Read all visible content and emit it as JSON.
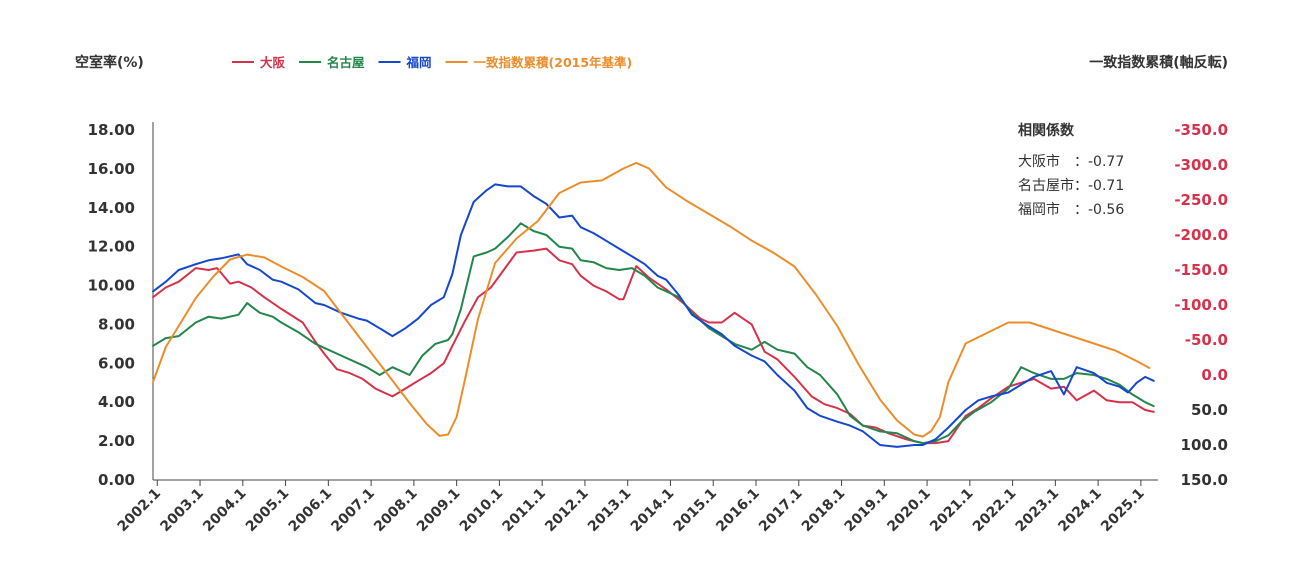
{
  "chart_data": {
    "type": "line",
    "left_axis_label": "空室率(%)",
    "right_axis_label": "一致指数累積(軸反転)",
    "left_ylim": [
      0,
      18
    ],
    "left_ticks": [
      "0.00",
      "2.00",
      "4.00",
      "6.00",
      "8.00",
      "10.00",
      "12.00",
      "14.00",
      "16.00",
      "18.00"
    ],
    "right_ylim": [
      150,
      -350
    ],
    "right_ticks": [
      "150.0",
      "100.0",
      "50.0",
      "0.0",
      "-50.0",
      "-100.0",
      "-150.0",
      "-200.0",
      "-250.0",
      "-300.0",
      "-350.0"
    ],
    "x_ticks": [
      "2002.1",
      "2003.1",
      "2004.1",
      "2005.1",
      "2006.1",
      "2007.1",
      "2008.1",
      "2009.1",
      "2010.1",
      "2011.1",
      "2012.1",
      "2013.1",
      "2014.1",
      "2015.1",
      "2016.1",
      "2017.1",
      "2018.1",
      "2019.1",
      "2020.1",
      "2021.1",
      "2022.1",
      "2023.1",
      "2024.1",
      "2025.1"
    ],
    "x_range": [
      2002.0,
      2025.5
    ],
    "grid": false,
    "legend_position": "top",
    "series": [
      {
        "name": "大阪",
        "axis": "left",
        "color": "#d6324b",
        "x": [
          2002.0,
          2002.3,
          2002.6,
          2003.0,
          2003.3,
          2003.5,
          2003.8,
          2004.0,
          2004.3,
          2004.6,
          2005.0,
          2005.5,
          2005.8,
          2006.0,
          2006.3,
          2006.6,
          2006.9,
          2007.2,
          2007.4,
          2007.6,
          2007.9,
          2008.2,
          2008.5,
          2008.8,
          2009.0,
          2009.3,
          2009.6,
          2009.9,
          2010.2,
          2010.5,
          2010.9,
          2011.2,
          2011.5,
          2011.8,
          2012.0,
          2012.3,
          2012.6,
          2012.9,
          2013.0,
          2013.3,
          2013.6,
          2014.0,
          2014.4,
          2014.8,
          2015.0,
          2015.3,
          2015.6,
          2016.0,
          2016.3,
          2016.6,
          2017.0,
          2017.4,
          2017.7,
          2018.0,
          2018.3,
          2018.6,
          2018.9,
          2019.2,
          2019.6,
          2020.0,
          2020.3,
          2020.6,
          2021.0,
          2021.3,
          2021.6,
          2022.0,
          2022.3,
          2022.6,
          2023.0,
          2023.3,
          2023.6,
          2024.0,
          2024.3,
          2024.6,
          2024.9,
          2025.2,
          2025.4
        ],
        "y": [
          9.4,
          9.9,
          10.2,
          10.9,
          10.8,
          10.9,
          10.1,
          10.2,
          9.9,
          9.4,
          8.8,
          8.1,
          7.1,
          6.5,
          5.7,
          5.5,
          5.2,
          4.7,
          4.5,
          4.3,
          4.7,
          5.1,
          5.5,
          6.0,
          6.9,
          8.2,
          9.4,
          9.9,
          10.8,
          11.7,
          11.8,
          11.9,
          11.3,
          11.1,
          10.5,
          10.0,
          9.7,
          9.3,
          9.3,
          11.0,
          10.4,
          9.8,
          9.1,
          8.3,
          8.1,
          8.1,
          8.6,
          8.0,
          6.6,
          6.2,
          5.3,
          4.3,
          3.9,
          3.7,
          3.4,
          2.8,
          2.7,
          2.4,
          2.1,
          1.9,
          1.9,
          2.0,
          3.3,
          3.7,
          4.2,
          4.8,
          5.0,
          5.2,
          4.7,
          4.8,
          4.1,
          4.6,
          4.1,
          4.0,
          4.0,
          3.6,
          3.5
        ]
      },
      {
        "name": "名古屋",
        "axis": "left",
        "color": "#23864a",
        "x": [
          2002.0,
          2002.3,
          2002.6,
          2003.0,
          2003.3,
          2003.6,
          2004.0,
          2004.2,
          2004.5,
          2004.8,
          2005.0,
          2005.4,
          2005.8,
          2006.0,
          2006.4,
          2006.8,
          2007.0,
          2007.3,
          2007.6,
          2008.0,
          2008.3,
          2008.6,
          2008.9,
          2009.0,
          2009.2,
          2009.5,
          2009.8,
          2010.0,
          2010.3,
          2010.6,
          2010.9,
          2011.2,
          2011.5,
          2011.8,
          2012.0,
          2012.3,
          2012.6,
          2012.9,
          2013.2,
          2013.5,
          2013.8,
          2014.0,
          2014.3,
          2014.6,
          2015.0,
          2015.3,
          2015.6,
          2016.0,
          2016.3,
          2016.6,
          2017.0,
          2017.3,
          2017.6,
          2018.0,
          2018.3,
          2018.6,
          2019.0,
          2019.4,
          2019.8,
          2020.0,
          2020.3,
          2020.6,
          2020.9,
          2021.2,
          2021.6,
          2022.0,
          2022.3,
          2022.6,
          2023.0,
          2023.3,
          2023.6,
          2024.0,
          2024.3,
          2024.6,
          2024.9,
          2025.2,
          2025.4
        ],
        "y": [
          6.9,
          7.3,
          7.4,
          8.1,
          8.4,
          8.3,
          8.5,
          9.1,
          8.6,
          8.4,
          8.1,
          7.6,
          7.0,
          6.8,
          6.4,
          6.0,
          5.8,
          5.4,
          5.8,
          5.4,
          6.4,
          7.0,
          7.2,
          7.5,
          8.8,
          11.5,
          11.7,
          11.9,
          12.5,
          13.2,
          12.8,
          12.6,
          12.0,
          11.9,
          11.3,
          11.2,
          10.9,
          10.8,
          10.9,
          10.5,
          9.9,
          9.7,
          9.4,
          8.6,
          7.8,
          7.4,
          7.0,
          6.7,
          7.1,
          6.7,
          6.5,
          5.8,
          5.4,
          4.4,
          3.3,
          2.8,
          2.5,
          2.4,
          2.0,
          1.9,
          2.0,
          2.3,
          3.0,
          3.5,
          4.0,
          4.7,
          5.8,
          5.5,
          5.2,
          5.2,
          5.5,
          5.4,
          5.2,
          4.9,
          4.4,
          4.0,
          3.8
        ]
      },
      {
        "name": "福岡",
        "axis": "left",
        "color": "#1548cc",
        "x": [
          2002.0,
          2002.3,
          2002.6,
          2003.0,
          2003.3,
          2003.6,
          2004.0,
          2004.2,
          2004.5,
          2004.8,
          2005.0,
          2005.4,
          2005.8,
          2006.0,
          2006.4,
          2006.8,
          2007.0,
          2007.3,
          2007.6,
          2007.9,
          2008.2,
          2008.5,
          2008.8,
          2009.0,
          2009.2,
          2009.5,
          2009.8,
          2010.0,
          2010.3,
          2010.6,
          2010.9,
          2011.2,
          2011.5,
          2011.8,
          2012.0,
          2012.3,
          2012.6,
          2012.9,
          2013.2,
          2013.5,
          2013.8,
          2014.0,
          2014.3,
          2014.6,
          2015.0,
          2015.3,
          2015.6,
          2016.0,
          2016.3,
          2016.6,
          2017.0,
          2017.3,
          2017.6,
          2018.0,
          2018.3,
          2018.6,
          2019.0,
          2019.4,
          2019.8,
          2020.0,
          2020.3,
          2020.6,
          2021.0,
          2021.3,
          2021.6,
          2022.0,
          2022.3,
          2022.6,
          2023.0,
          2023.3,
          2023.6,
          2024.0,
          2024.3,
          2024.6,
          2024.8,
          2025.0,
          2025.2,
          2025.4
        ],
        "y": [
          9.7,
          10.2,
          10.8,
          11.1,
          11.3,
          11.4,
          11.6,
          11.1,
          10.8,
          10.3,
          10.2,
          9.8,
          9.1,
          9.0,
          8.6,
          8.3,
          8.2,
          7.8,
          7.4,
          7.8,
          8.3,
          9.0,
          9.4,
          10.6,
          12.6,
          14.3,
          14.9,
          15.2,
          15.1,
          15.1,
          14.6,
          14.2,
          13.5,
          13.6,
          13.0,
          12.7,
          12.3,
          11.9,
          11.5,
          11.1,
          10.5,
          10.3,
          9.5,
          8.5,
          7.9,
          7.5,
          6.9,
          6.4,
          6.1,
          5.4,
          4.6,
          3.7,
          3.3,
          3.0,
          2.8,
          2.5,
          1.8,
          1.7,
          1.8,
          1.8,
          2.1,
          2.7,
          3.6,
          4.1,
          4.3,
          4.5,
          4.9,
          5.3,
          5.6,
          4.4,
          5.8,
          5.5,
          5.0,
          4.8,
          4.5,
          5.0,
          5.3,
          5.1
        ]
      },
      {
        "name": "一致指数累積(2015年基準)",
        "axis": "right",
        "color": "#ec8d2c",
        "x": [
          2002.0,
          2002.3,
          2002.6,
          2003.0,
          2003.4,
          2003.8,
          2004.2,
          2004.6,
          2005.0,
          2005.5,
          2006.0,
          2006.5,
          2007.0,
          2007.5,
          2008.0,
          2008.4,
          2008.7,
          2008.9,
          2009.1,
          2009.3,
          2009.6,
          2010.0,
          2010.5,
          2011.0,
          2011.5,
          2012.0,
          2012.5,
          2013.0,
          2013.3,
          2013.6,
          2014.0,
          2014.5,
          2015.0,
          2015.5,
          2016.0,
          2016.5,
          2017.0,
          2017.5,
          2018.0,
          2018.5,
          2019.0,
          2019.4,
          2019.8,
          2020.0,
          2020.2,
          2020.4,
          2020.6,
          2021.0,
          2021.5,
          2022.0,
          2022.5,
          2023.0,
          2023.5,
          2024.0,
          2024.5,
          2025.0,
          2025.3
        ],
        "y": [
          10,
          -40,
          -70,
          -110,
          -140,
          -165,
          -172,
          -168,
          -155,
          -140,
          -120,
          -80,
          -40,
          0,
          40,
          70,
          87,
          85,
          60,
          5,
          -80,
          -160,
          -195,
          -220,
          -260,
          -275,
          -278,
          -295,
          -303,
          -295,
          -268,
          -248,
          -230,
          -212,
          -192,
          -175,
          -155,
          -115,
          -70,
          -15,
          35,
          65,
          85,
          88,
          80,
          60,
          10,
          -45,
          -60,
          -75,
          -75,
          -65,
          -55,
          -45,
          -35,
          -20,
          -10
        ]
      }
    ],
    "annotation": {
      "title": "相関係数",
      "lines": [
        "大阪市　：-0.77",
        "名古屋市：-0.71",
        "福岡市　：-0.56"
      ]
    }
  }
}
